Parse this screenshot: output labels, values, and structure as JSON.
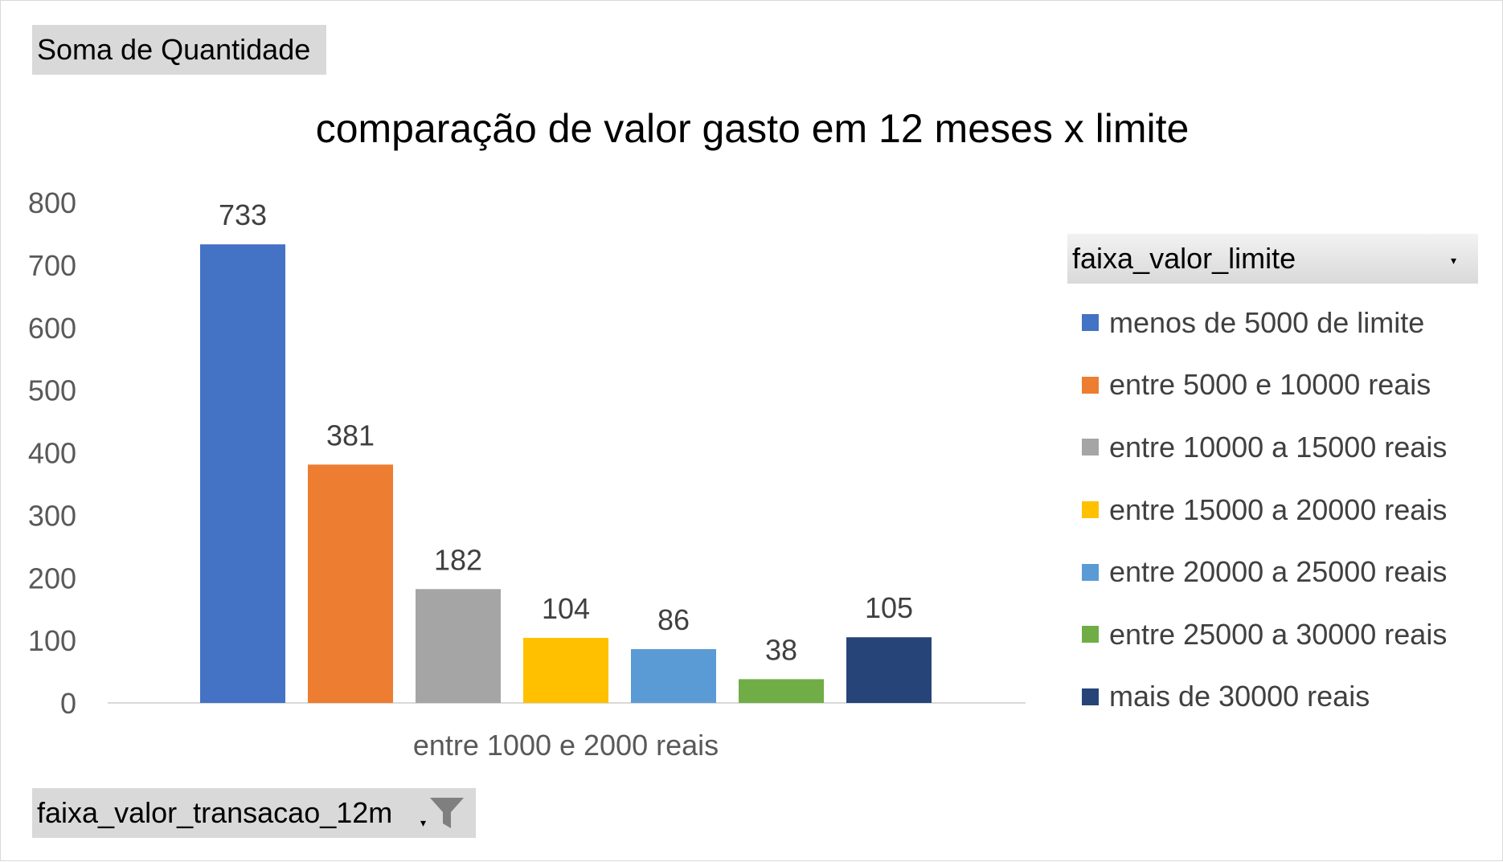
{
  "value_field": {
    "label": "Soma de Quantidade"
  },
  "axis_field": {
    "label": "faixa_valor_transacao_12m",
    "dropdown_icon": "dropdown-arrow-icon",
    "filter_icon": "filter-funnel-icon"
  },
  "legend_field": {
    "label": "faixa_valor_limite",
    "dropdown_icon": "dropdown-arrow-icon"
  },
  "chart_data": {
    "type": "bar",
    "title": "comparação de valor gasto em 12 meses x limite",
    "categories": [
      "entre 1000 e 2000 reais"
    ],
    "series": [
      {
        "name": "menos de 5000 de limite",
        "values": [
          733
        ],
        "color": "#4472C4"
      },
      {
        "name": "entre 5000 e 10000 reais",
        "values": [
          381
        ],
        "color": "#ED7D31"
      },
      {
        "name": "entre 10000 a 15000 reais",
        "values": [
          182
        ],
        "color": "#A5A5A5"
      },
      {
        "name": "entre 15000 a 20000 reais",
        "values": [
          104
        ],
        "color": "#FFC000"
      },
      {
        "name": "entre 20000 a 25000 reais",
        "values": [
          86
        ],
        "color": "#5B9BD5"
      },
      {
        "name": "entre 25000 a 30000 reais",
        "values": [
          38
        ],
        "color": "#70AD47"
      },
      {
        "name": "mais de 30000 reais",
        "values": [
          105
        ],
        "color": "#264478"
      }
    ],
    "yticks": [
      "0",
      "100",
      "200",
      "300",
      "400",
      "500",
      "600",
      "700",
      "800"
    ],
    "ylim": [
      0,
      800
    ],
    "xlabel": "",
    "ylabel": "",
    "grid": false,
    "legend_position": "right"
  }
}
